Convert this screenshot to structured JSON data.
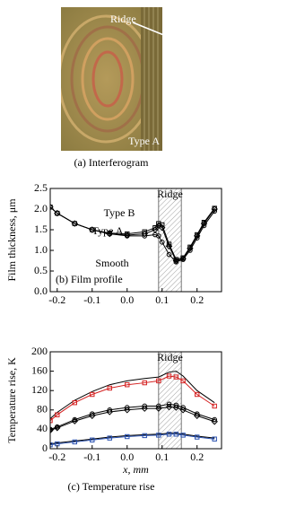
{
  "image": {
    "ridge_label": "Ridge",
    "type_label": "Type A",
    "caption": "(a) Interferogram"
  },
  "chart_data": [
    {
      "type": "line",
      "ylabel": "Film thickness, μm",
      "x": [
        -0.22,
        -0.2,
        -0.15,
        -0.1,
        -0.05,
        0,
        0.05,
        0.08,
        0.09,
        0.1,
        0.12,
        0.14,
        0.16,
        0.18,
        0.2,
        0.22,
        0.25
      ],
      "series": [
        {
          "color": "#000000",
          "marker": "circle",
          "values": [
            2.05,
            1.9,
            1.65,
            1.5,
            1.4,
            1.35,
            1.35,
            1.38,
            1.35,
            1.2,
            0.9,
            0.72,
            0.78,
            1.0,
            1.3,
            1.6,
            1.95
          ]
        },
        {
          "color": "#000000",
          "marker": "diamond",
          "values": [
            2.05,
            1.9,
            1.65,
            1.5,
            1.4,
            1.37,
            1.4,
            1.5,
            1.6,
            1.55,
            1.1,
            0.75,
            0.8,
            1.05,
            1.35,
            1.65,
            2.0
          ]
        },
        {
          "color": "#000000",
          "marker": "square",
          "values": [
            2.05,
            1.9,
            1.65,
            1.5,
            1.42,
            1.4,
            1.45,
            1.55,
            1.65,
            1.62,
            1.15,
            0.78,
            0.82,
            1.08,
            1.38,
            1.68,
            2.02
          ]
        }
      ],
      "band": [
        0.09,
        0.155
      ],
      "band_label": "Ridge",
      "annotations": [
        "Type B",
        "Type A",
        "Smooth",
        "(b) Film profile"
      ],
      "xlim": [
        -0.22,
        0.27
      ],
      "ylim": [
        0,
        2.5
      ],
      "xticks": [
        -0.2,
        -0.1,
        {
          "value": 0,
          "label": "0.0"
        },
        0.1,
        0.2
      ],
      "yticks": [
        {
          "value": 0,
          "label": "0.0"
        },
        0.5,
        {
          "value": 1,
          "label": "1.0"
        },
        1.5,
        {
          "value": 2,
          "label": "2.0"
        },
        2.5
      ]
    },
    {
      "type": "line",
      "ylabel": "Temperature rise, K",
      "xlabel": "x, mm",
      "caption": "(c) Temperature rise",
      "x": [
        -0.22,
        -0.2,
        -0.15,
        -0.1,
        -0.05,
        0,
        0.05,
        0.09,
        0.12,
        0.14,
        0.16,
        0.2,
        0.25
      ],
      "series": [
        {
          "color": "#000000",
          "marker": "none",
          "values": [
            62,
            75,
            100,
            118,
            132,
            140,
            145,
            148,
            158,
            160,
            150,
            120,
            95
          ]
        },
        {
          "color": "#d42020",
          "marker": "square",
          "values": [
            58,
            70,
            95,
            112,
            125,
            132,
            136,
            140,
            150,
            148,
            140,
            112,
            88
          ]
        },
        {
          "color": "#000000",
          "marker": "circle",
          "values": [
            40,
            45,
            60,
            72,
            80,
            85,
            88,
            88,
            92,
            90,
            85,
            72,
            60
          ]
        },
        {
          "color": "#000000",
          "marker": "diamond",
          "values": [
            38,
            43,
            57,
            68,
            76,
            80,
            83,
            83,
            86,
            85,
            80,
            68,
            56
          ]
        },
        {
          "color": "#000000",
          "marker": "none",
          "values": [
            10,
            12,
            16,
            20,
            24,
            27,
            29,
            30,
            32,
            32,
            30,
            26,
            22
          ]
        },
        {
          "color": "#2850b0",
          "marker": "square",
          "values": [
            8,
            10,
            14,
            18,
            22,
            25,
            27,
            28,
            30,
            30,
            28,
            24,
            20
          ]
        }
      ],
      "band": [
        0.09,
        0.155
      ],
      "band_label": "Ridge",
      "xlim": [
        -0.22,
        0.27
      ],
      "ylim": [
        0,
        200
      ],
      "xticks": [
        -0.2,
        -0.1,
        {
          "value": 0,
          "label": "0.0"
        },
        0.1,
        0.2
      ],
      "yticks": [
        0,
        40,
        80,
        120,
        160,
        200
      ]
    }
  ]
}
